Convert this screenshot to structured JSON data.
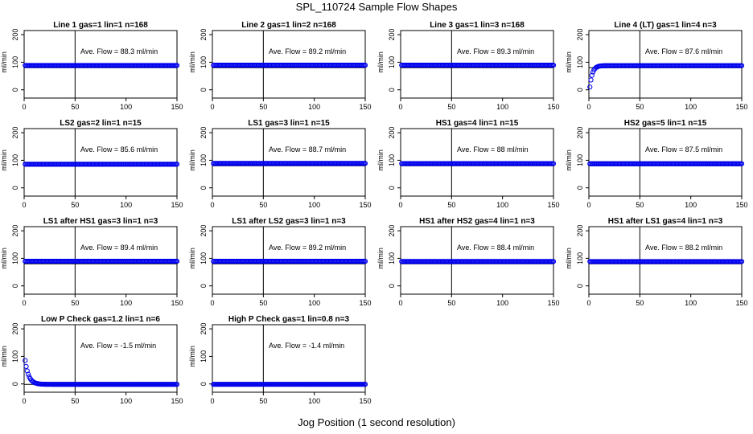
{
  "figure": {
    "title": "SPL_110724  Sample Flow Shapes",
    "xlabel": "Jog Position (1 second resolution)",
    "point_color": "#0000ee"
  },
  "chart_data": [
    {
      "type": "scatter",
      "title": "Line 1 gas=1 lin=1 n=168",
      "annotation": "Ave. Flow =  88.3  ml/min",
      "ylabel": "ml/min",
      "xlim": [
        0,
        150
      ],
      "ylim": [
        -30,
        215
      ],
      "x_ticks": [
        0,
        50,
        100,
        150
      ],
      "y_ticks": [
        0,
        100,
        200
      ],
      "hline": 80,
      "vline": 50,
      "x": [
        1,
        150
      ],
      "y": [
        88.3,
        88.3
      ],
      "shape": "flat"
    },
    {
      "type": "scatter",
      "title": "Line 2 gas=1 lin=2 n=168",
      "annotation": "Ave. Flow =  89.2  ml/min",
      "ylabel": "ml/min",
      "xlim": [
        0,
        150
      ],
      "ylim": [
        -30,
        215
      ],
      "x_ticks": [
        0,
        50,
        100,
        150
      ],
      "y_ticks": [
        0,
        100,
        200
      ],
      "hline": 80,
      "vline": 50,
      "x": [
        1,
        150
      ],
      "y": [
        89.2,
        89.2
      ],
      "shape": "flat"
    },
    {
      "type": "scatter",
      "title": "Line 3 gas=1 lin=3 n=168",
      "annotation": "Ave. Flow =  89.3  ml/min",
      "ylabel": "ml/min",
      "xlim": [
        0,
        150
      ],
      "ylim": [
        -30,
        215
      ],
      "x_ticks": [
        0,
        50,
        100,
        150
      ],
      "y_ticks": [
        0,
        100,
        200
      ],
      "hline": 80,
      "vline": 50,
      "x": [
        1,
        150
      ],
      "y": [
        89.3,
        89.3
      ],
      "shape": "flat"
    },
    {
      "type": "scatter",
      "title": "Line 4 (LT) gas=1 lin=4 n=3",
      "annotation": "Ave. Flow =  87.6  ml/min",
      "ylabel": "ml/min",
      "xlim": [
        0,
        150
      ],
      "ylim": [
        -30,
        215
      ],
      "x_ticks": [
        0,
        50,
        100,
        150
      ],
      "y_ticks": [
        0,
        100,
        200
      ],
      "hline": 80,
      "vline": 50,
      "x": [
        1,
        150
      ],
      "y": [
        87.6,
        87.6
      ],
      "shape": "rise",
      "start": 10,
      "tau": 2.5
    },
    {
      "type": "scatter",
      "title": "LS2 gas=2 lin=1 n=15",
      "annotation": "Ave. Flow =  85.6  ml/min",
      "ylabel": "ml/min",
      "xlim": [
        0,
        150
      ],
      "ylim": [
        -30,
        215
      ],
      "x_ticks": [
        0,
        50,
        100,
        150
      ],
      "y_ticks": [
        0,
        100,
        200
      ],
      "hline": 80,
      "vline": 50,
      "x": [
        1,
        150
      ],
      "y": [
        85.6,
        85.6
      ],
      "shape": "flat"
    },
    {
      "type": "scatter",
      "title": "LS1 gas=3 lin=1 n=15",
      "annotation": "Ave. Flow =  88.7  ml/min",
      "ylabel": "ml/min",
      "xlim": [
        0,
        150
      ],
      "ylim": [
        -30,
        215
      ],
      "x_ticks": [
        0,
        50,
        100,
        150
      ],
      "y_ticks": [
        0,
        100,
        200
      ],
      "hline": 80,
      "vline": 50,
      "x": [
        1,
        150
      ],
      "y": [
        88.7,
        88.7
      ],
      "shape": "flat"
    },
    {
      "type": "scatter",
      "title": "HS1 gas=4 lin=1 n=15",
      "annotation": "Ave. Flow =  88  ml/min",
      "ylabel": "ml/min",
      "xlim": [
        0,
        150
      ],
      "ylim": [
        -30,
        215
      ],
      "x_ticks": [
        0,
        50,
        100,
        150
      ],
      "y_ticks": [
        0,
        100,
        200
      ],
      "hline": 80,
      "vline": 50,
      "x": [
        1,
        150
      ],
      "y": [
        88,
        88
      ],
      "shape": "flat"
    },
    {
      "type": "scatter",
      "title": "HS2 gas=5 lin=1 n=15",
      "annotation": "Ave. Flow =  87.5  ml/min",
      "ylabel": "ml/min",
      "xlim": [
        0,
        150
      ],
      "ylim": [
        -30,
        215
      ],
      "x_ticks": [
        0,
        50,
        100,
        150
      ],
      "y_ticks": [
        0,
        100,
        200
      ],
      "hline": 80,
      "vline": 50,
      "x": [
        1,
        150
      ],
      "y": [
        87.5,
        87.5
      ],
      "shape": "flat"
    },
    {
      "type": "scatter",
      "title": "LS1 after HS1 gas=3 lin=1 n=3",
      "annotation": "Ave. Flow =  89.4  ml/min",
      "ylabel": "ml/min",
      "xlim": [
        0,
        150
      ],
      "ylim": [
        -30,
        215
      ],
      "x_ticks": [
        0,
        50,
        100,
        150
      ],
      "y_ticks": [
        0,
        100,
        200
      ],
      "hline": 80,
      "vline": 50,
      "x": [
        1,
        150
      ],
      "y": [
        89.4,
        89.4
      ],
      "shape": "flat"
    },
    {
      "type": "scatter",
      "title": "LS1 after LS2 gas=3 lin=1 n=3",
      "annotation": "Ave. Flow =  89.2  ml/min",
      "ylabel": "ml/min",
      "xlim": [
        0,
        150
      ],
      "ylim": [
        -30,
        215
      ],
      "x_ticks": [
        0,
        50,
        100,
        150
      ],
      "y_ticks": [
        0,
        100,
        200
      ],
      "hline": 80,
      "vline": 50,
      "x": [
        1,
        150
      ],
      "y": [
        89.2,
        89.2
      ],
      "shape": "flat"
    },
    {
      "type": "scatter",
      "title": "HS1 after HS2 gas=4 lin=1 n=3",
      "annotation": "Ave. Flow =  88.4  ml/min",
      "ylabel": "ml/min",
      "xlim": [
        0,
        150
      ],
      "ylim": [
        -30,
        215
      ],
      "x_ticks": [
        0,
        50,
        100,
        150
      ],
      "y_ticks": [
        0,
        100,
        200
      ],
      "hline": 80,
      "vline": 50,
      "x": [
        1,
        150
      ],
      "y": [
        88.4,
        88.4
      ],
      "shape": "flat"
    },
    {
      "type": "scatter",
      "title": "HS1 after LS1 gas=4 lin=1 n=3",
      "annotation": "Ave. Flow =  88.2  ml/min",
      "ylabel": "ml/min",
      "xlim": [
        0,
        150
      ],
      "ylim": [
        -30,
        215
      ],
      "x_ticks": [
        0,
        50,
        100,
        150
      ],
      "y_ticks": [
        0,
        100,
        200
      ],
      "hline": 80,
      "vline": 50,
      "x": [
        1,
        150
      ],
      "y": [
        88.2,
        88.2
      ],
      "shape": "flat"
    },
    {
      "type": "scatter",
      "title": "Low P Check gas=1.2 lin=1 n=6",
      "annotation": "Ave. Flow =  -1.5  ml/min",
      "ylabel": "ml/min",
      "xlim": [
        0,
        150
      ],
      "ylim": [
        -30,
        215
      ],
      "x_ticks": [
        0,
        50,
        100,
        150
      ],
      "y_ticks": [
        0,
        100,
        200
      ],
      "hline": -1.5,
      "vline": 50,
      "x": [
        1,
        150
      ],
      "y": [
        -1.5,
        -1.5
      ],
      "shape": "decay",
      "start": 85,
      "tau": 3.5
    },
    {
      "type": "scatter",
      "title": "High P Check gas=1 lin=0.8 n=3",
      "annotation": "Ave. Flow =  -1.4  ml/min",
      "ylabel": "ml/min",
      "xlim": [
        0,
        150
      ],
      "ylim": [
        -30,
        215
      ],
      "x_ticks": [
        0,
        50,
        100,
        150
      ],
      "y_ticks": [
        0,
        100,
        200
      ],
      "hline": -1.4,
      "vline": 50,
      "x": [
        1,
        150
      ],
      "y": [
        -1.4,
        -1.4
      ],
      "shape": "flat"
    }
  ]
}
